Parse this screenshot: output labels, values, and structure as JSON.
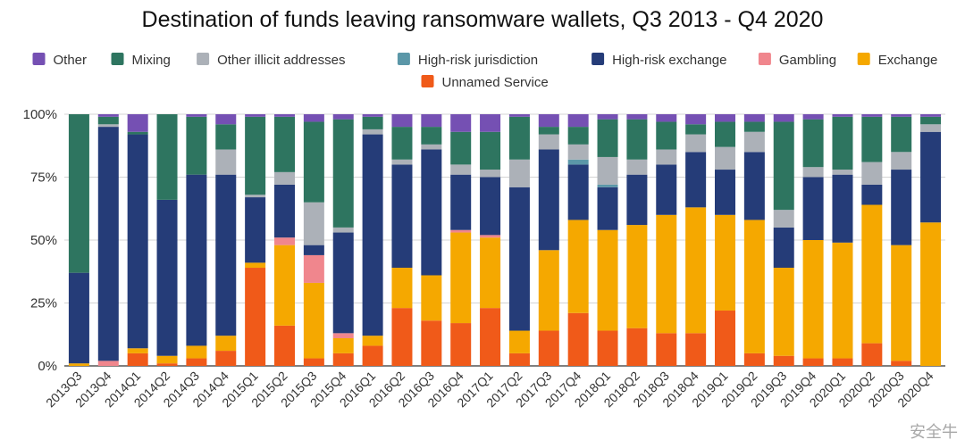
{
  "chart_data": {
    "type": "bar",
    "stacked": true,
    "normalized": true,
    "title": "Destination of funds leaving ransomware wallets, Q3 2013 - Q4 2020",
    "xlabel": "",
    "ylabel": "",
    "ylim": [
      0,
      100
    ],
    "y_ticks": [
      "0%",
      "25%",
      "50%",
      "75%",
      "100%"
    ],
    "grid": "horizontal",
    "legend_position": "top",
    "legend_order": [
      "Other",
      "Mixing",
      "Other illicit addresses",
      "High-risk jurisdiction",
      "High-risk exchange",
      "Gambling",
      "Exchange",
      "Unnamed Service"
    ],
    "categories": [
      "2013Q3",
      "2013Q4",
      "2014Q1",
      "2014Q2",
      "2014Q3",
      "2014Q4",
      "2015Q1",
      "2015Q2",
      "2015Q3",
      "2015Q4",
      "2016Q1",
      "2016Q2",
      "2016Q3",
      "2016Q4",
      "2017Q1",
      "2017Q2",
      "2017Q3",
      "2017Q4",
      "2018Q1",
      "2018Q2",
      "2018Q3",
      "2018Q4",
      "2019Q1",
      "2019Q2",
      "2019Q3",
      "2019Q4",
      "2020Q1",
      "2020Q2",
      "2020Q3",
      "2020Q4"
    ],
    "series": [
      {
        "name": "Unnamed Service",
        "color": "#f05a19",
        "values": [
          0,
          0,
          5,
          1,
          3,
          6,
          39,
          16,
          3,
          5,
          8,
          23,
          18,
          17,
          23,
          5,
          14,
          21,
          14,
          15,
          13,
          13,
          22,
          5,
          4,
          3,
          3,
          9,
          2,
          0
        ]
      },
      {
        "name": "Exchange",
        "color": "#f5a800",
        "values": [
          1,
          0,
          2,
          3,
          5,
          6,
          2,
          32,
          30,
          6,
          4,
          16,
          18,
          36,
          28,
          9,
          32,
          37,
          40,
          41,
          47,
          50,
          38,
          53,
          35,
          47,
          46,
          55,
          46,
          57
        ]
      },
      {
        "name": "Gambling",
        "color": "#f0868d",
        "values": [
          0,
          2,
          0,
          0,
          0,
          0,
          0,
          3,
          11,
          2,
          0,
          0,
          0,
          1,
          1,
          0,
          0,
          0,
          0,
          0,
          0,
          0,
          0,
          0,
          0,
          0,
          0,
          0,
          0,
          0
        ]
      },
      {
        "name": "High-risk exchange",
        "color": "#253c78",
        "values": [
          36,
          93,
          85,
          62,
          68,
          64,
          26,
          21,
          4,
          40,
          80,
          41,
          50,
          22,
          23,
          57,
          40,
          22,
          17,
          20,
          20,
          22,
          18,
          27,
          16,
          25,
          27,
          8,
          30,
          36
        ]
      },
      {
        "name": "High-risk jurisdiction",
        "color": "#5b97a8",
        "values": [
          0,
          0,
          0,
          0,
          0,
          0,
          0,
          0,
          0,
          0,
          0,
          0,
          0,
          0,
          0,
          0,
          0,
          2,
          1,
          0,
          0,
          0,
          0,
          0,
          0,
          0,
          0,
          0,
          0,
          0
        ]
      },
      {
        "name": "Other illicit addresses",
        "color": "#acb1b8",
        "values": [
          0,
          1,
          0,
          0,
          0,
          10,
          1,
          5,
          17,
          2,
          2,
          2,
          2,
          4,
          3,
          11,
          6,
          6,
          11,
          6,
          6,
          7,
          9,
          8,
          7,
          4,
          2,
          9,
          7,
          3
        ]
      },
      {
        "name": "Mixing",
        "color": "#2e7560",
        "values": [
          63,
          3,
          1,
          34,
          23,
          10,
          31,
          22,
          32,
          43,
          5,
          13,
          7,
          13,
          15,
          17,
          3,
          7,
          15,
          16,
          11,
          4,
          10,
          4,
          35,
          19,
          21,
          18,
          14,
          3
        ]
      },
      {
        "name": "Other",
        "color": "#7550b3",
        "values": [
          0,
          1,
          7,
          0,
          1,
          4,
          1,
          1,
          3,
          2,
          1,
          5,
          5,
          7,
          7,
          1,
          5,
          5,
          2,
          2,
          3,
          4,
          3,
          3,
          3,
          2,
          1,
          1,
          1,
          1
        ]
      }
    ]
  },
  "watermark": {
    "text": "安全牛"
  }
}
